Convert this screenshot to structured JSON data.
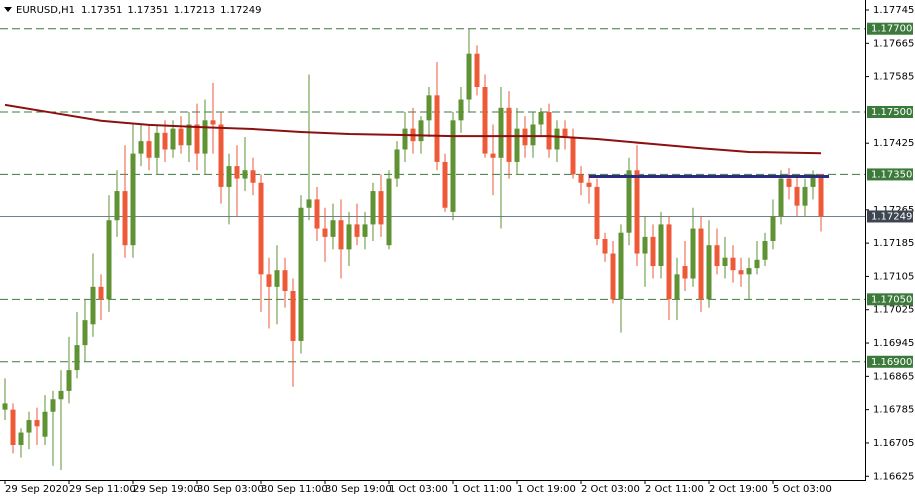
{
  "chart_data": {
    "type": "candlestick",
    "title": "EURUSD,H1",
    "header_values": [
      1.17351,
      1.17351,
      1.17213,
      1.17249
    ],
    "up_color": "#5f9233",
    "down_color": "#ee5a38",
    "xlim": [
      -0.625,
      107.5
    ],
    "ylim": [
      1.16616,
      1.17769
    ],
    "yticks": [
      1.17745,
      1.17665,
      1.17585,
      1.17425,
      1.17265,
      1.17185,
      1.17105,
      1.17025,
      1.16945,
      1.16865,
      1.16785,
      1.16705,
      1.16625
    ],
    "xticks": [
      {
        "value": 0,
        "label": "29 Sep 2020"
      },
      {
        "value": 8,
        "label": "29 Sep 11:00"
      },
      {
        "value": 16,
        "label": "29 Sep 19:00"
      },
      {
        "value": 24,
        "label": "30 Sep 03:00"
      },
      {
        "value": 32,
        "label": "30 Sep 11:00"
      },
      {
        "value": 40,
        "label": "30 Sep 19:00"
      },
      {
        "value": 48,
        "label": "1 Oct 03:00"
      },
      {
        "value": 56,
        "label": "1 Oct 11:00"
      },
      {
        "value": 64,
        "label": "1 Oct 19:00"
      },
      {
        "value": 72,
        "label": "2 Oct 03:00"
      },
      {
        "value": 80,
        "label": "2 Oct 11:00"
      },
      {
        "value": 88,
        "label": "2 Oct 19:00"
      },
      {
        "value": 96,
        "label": "5 Oct 03:00"
      }
    ],
    "open": [
      1.16785,
      1.16785,
      1.167,
      1.1673,
      1.1676,
      1.1672,
      1.1678,
      1.1681,
      1.1683,
      1.1688,
      1.1694,
      1.1699,
      1.1708,
      1.1705,
      1.1724,
      1.1731,
      1.1718,
      1.174,
      1.1743,
      1.1739,
      1.1745,
      1.1741,
      1.1746,
      1.1742,
      1.1747,
      1.174,
      1.1748,
      1.1747,
      1.1732,
      1.1737,
      1.1734,
      1.1736,
      1.1733,
      1.1711,
      1.1708,
      1.1712,
      1.1707,
      1.1695,
      1.1727,
      1.1729,
      1.1722,
      1.172,
      1.1724,
      1.1717,
      1.1723,
      1.172,
      1.1723,
      1.1731,
      1.1718,
      1.1734,
      1.1741,
      1.1746,
      1.1743,
      1.1748,
      1.1754,
      1.1738,
      1.1726,
      1.1748,
      1.1753,
      1.1764,
      1.1756,
      1.174,
      1.1739,
      1.1751,
      1.1738,
      1.1746,
      1.1742,
      1.1747,
      1.175,
      1.1741,
      1.1746,
      1.1744,
      1.1735,
      1.1733,
      1.1732,
      1.17195,
      1.1716,
      1.1705,
      1.1721,
      1.1736,
      1.1716,
      1.172,
      1.1713,
      1.1723,
      1.1705,
      1.1713,
      1.171,
      1.1722,
      1.1705,
      1.1718,
      1.1713,
      1.1715,
      1.1712,
      1.1711,
      1.17125,
      1.17145,
      1.1719,
      1.1725,
      1.1734,
      1.1732,
      1.17275,
      1.1732,
      1.17351
    ],
    "high": [
      1.1686,
      1.168,
      1.1674,
      1.1678,
      1.1679,
      1.1682,
      1.1683,
      1.1688,
      1.1696,
      1.1702,
      1.1705,
      1.1716,
      1.1711,
      1.173,
      1.1736,
      1.1742,
      1.1747,
      1.1747,
      1.1747,
      1.1747,
      1.1748,
      1.1748,
      1.1749,
      1.175,
      1.1752,
      1.1753,
      1.1757,
      1.175,
      1.174,
      1.1742,
      1.1744,
      1.1739,
      1.1735,
      1.1715,
      1.1718,
      1.1715,
      1.171,
      1.173,
      1.1759,
      1.1732,
      1.1727,
      1.1728,
      1.1729,
      1.1726,
      1.1728,
      1.1726,
      1.1733,
      1.1735,
      1.1736,
      1.1743,
      1.175,
      1.1751,
      1.1749,
      1.1756,
      1.1762,
      1.174,
      1.175,
      1.1756,
      1.177,
      1.1766,
      1.1759,
      1.1747,
      1.1756,
      1.1755,
      1.1751,
      1.1749,
      1.175,
      1.1751,
      1.1752,
      1.1748,
      1.1748,
      1.1746,
      1.1737,
      1.1735,
      1.1734,
      1.1721,
      1.1719,
      1.1723,
      1.1739,
      1.1742,
      1.1725,
      1.1723,
      1.1726,
      1.1725,
      1.1715,
      1.1719,
      1.1727,
      1.1725,
      1.1724,
      1.1722,
      1.172,
      1.1718,
      1.1715,
      1.1715,
      1.1719,
      1.1721,
      1.1729,
      1.1736,
      1.17365,
      1.1735,
      1.1734,
      1.1736,
      1.17351
    ],
    "low": [
      1.1676,
      1.1668,
      1.1667,
      1.1669,
      1.167,
      1.167,
      1.1665,
      1.1664,
      1.168,
      1.1686,
      1.169,
      1.1696,
      1.17,
      1.1702,
      1.172,
      1.1715,
      1.1715,
      1.1737,
      1.1736,
      1.1735,
      1.1738,
      1.1739,
      1.174,
      1.1738,
      1.1736,
      1.1735,
      1.174,
      1.1728,
      1.1723,
      1.1725,
      1.1731,
      1.173,
      1.1702,
      1.1698,
      1.1699,
      1.1703,
      1.1684,
      1.1692,
      1.1724,
      1.1719,
      1.1714,
      1.1717,
      1.171,
      1.1713,
      1.1718,
      1.1717,
      1.1719,
      1.172,
      1.1717,
      1.1732,
      1.1738,
      1.174,
      1.174,
      1.1744,
      1.1736,
      1.1726,
      1.1724,
      1.1745,
      1.175,
      1.1754,
      1.1739,
      1.173,
      1.1722,
      1.1734,
      1.1735,
      1.1739,
      1.1739,
      1.1744,
      1.1739,
      1.1738,
      1.1741,
      1.1734,
      1.173,
      1.1728,
      1.1718,
      1.1714,
      1.1704,
      1.1697,
      1.1718,
      1.1713,
      1.1708,
      1.171,
      1.171,
      1.17,
      1.17,
      1.1707,
      1.1708,
      1.1702,
      1.1703,
      1.1711,
      1.171,
      1.1709,
      1.1708,
      1.1705,
      1.1711,
      1.1713,
      1.1717,
      1.1723,
      1.1729,
      1.1725,
      1.1725,
      1.1729,
      1.17213
    ],
    "close": [
      1.168,
      1.167,
      1.1673,
      1.1676,
      1.16745,
      1.1678,
      1.1681,
      1.1683,
      1.1688,
      1.1694,
      1.17,
      1.1708,
      1.1705,
      1.1724,
      1.1731,
      1.1718,
      1.174,
      1.1743,
      1.1739,
      1.1745,
      1.1741,
      1.1746,
      1.1742,
      1.1747,
      1.174,
      1.1748,
      1.1747,
      1.1732,
      1.1737,
      1.1734,
      1.1736,
      1.1733,
      1.1711,
      1.1708,
      1.1712,
      1.1707,
      1.1695,
      1.1727,
      1.1729,
      1.1722,
      1.172,
      1.1724,
      1.1717,
      1.1723,
      1.172,
      1.1723,
      1.1731,
      1.1723,
      1.1734,
      1.1741,
      1.1746,
      1.1743,
      1.1748,
      1.1754,
      1.1738,
      1.1727,
      1.1748,
      1.1753,
      1.1764,
      1.1756,
      1.174,
      1.1739,
      1.1751,
      1.1738,
      1.1746,
      1.1742,
      1.1747,
      1.175,
      1.1741,
      1.1746,
      1.1744,
      1.1735,
      1.1733,
      1.1732,
      1.17195,
      1.1716,
      1.1705,
      1.1721,
      1.1736,
      1.1716,
      1.172,
      1.1713,
      1.1723,
      1.1705,
      1.1711,
      1.171,
      1.1722,
      1.1705,
      1.1718,
      1.1713,
      1.1715,
      1.1712,
      1.1711,
      1.17125,
      1.17145,
      1.1719,
      1.1725,
      1.1734,
      1.1732,
      1.17275,
      1.1732,
      1.17351,
      1.17249
    ],
    "moving_average": {
      "color": "#8b1010",
      "x": [
        0,
        6,
        12,
        18,
        24,
        31,
        37,
        43,
        49,
        56,
        62,
        68,
        74,
        81,
        87,
        93,
        102
      ],
      "values": [
        1.17517,
        1.17498,
        1.17479,
        1.17469,
        1.17464,
        1.17459,
        1.17452,
        1.17447,
        1.17445,
        1.17442,
        1.17442,
        1.17442,
        1.17435,
        1.17423,
        1.17413,
        1.17404,
        1.17401
      ]
    },
    "trend_line": {
      "color": "#2b2b86",
      "x": [
        73,
        103
      ],
      "values": [
        1.17345,
        1.17345
      ]
    },
    "level_color": "#3c7a3c",
    "levels": [
      {
        "value": 1.177,
        "label": "1.17700"
      },
      {
        "value": 1.175,
        "label": "1.17500"
      },
      {
        "value": 1.1735,
        "label": "1.17350"
      },
      {
        "value": 1.1705,
        "label": "1.17050"
      },
      {
        "value": 1.169,
        "label": "1.16900"
      }
    ],
    "current_price": {
      "value": 1.17249,
      "label": "1.17249"
    },
    "current_price_color": "#6f8090"
  }
}
